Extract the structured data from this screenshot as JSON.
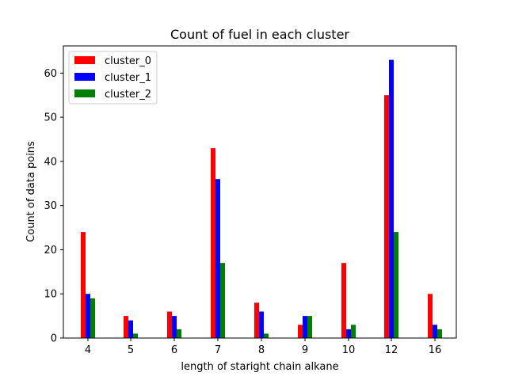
{
  "chart_data": {
    "type": "bar",
    "title": "Count of fuel in each cluster",
    "xlabel": "length of staright chain alkane",
    "ylabel": "Count of data poins",
    "categories": [
      "4",
      "5",
      "6",
      "7",
      "8",
      "9",
      "10",
      "12",
      "16"
    ],
    "series": [
      {
        "name": "cluster_0",
        "color": "#ff0000",
        "values": [
          24,
          5,
          6,
          43,
          8,
          3,
          17,
          55,
          10
        ]
      },
      {
        "name": "cluster_1",
        "color": "#0000ff",
        "values": [
          10,
          4,
          5,
          36,
          6,
          5,
          2,
          63,
          3
        ]
      },
      {
        "name": "cluster_2",
        "color": "#008000",
        "values": [
          9,
          1,
          2,
          17,
          1,
          5,
          3,
          24,
          2
        ]
      }
    ],
    "yticks": [
      0,
      10,
      20,
      30,
      40,
      50,
      60
    ],
    "ylim": [
      0,
      66.15
    ],
    "legend_position": "upper-left",
    "grid": false
  }
}
